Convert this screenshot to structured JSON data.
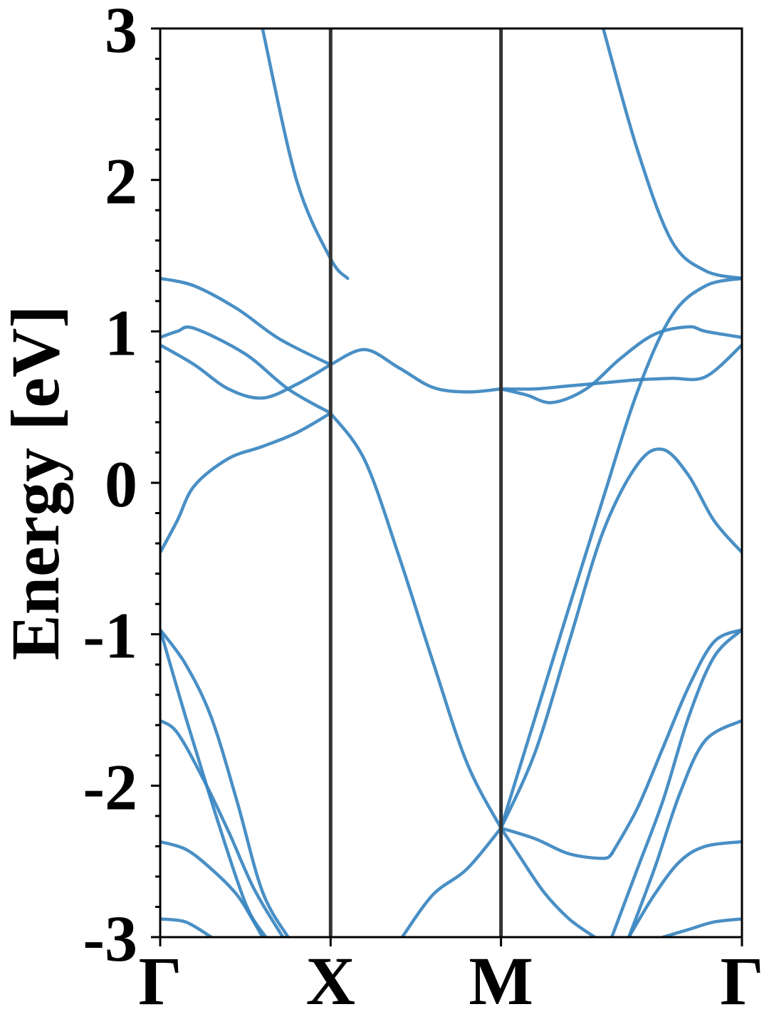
{
  "chart_data": {
    "type": "line",
    "title": "",
    "xlabel": "",
    "ylabel": "Energy [eV]",
    "ylim": [
      -3,
      3
    ],
    "yticks": [
      -3,
      -2,
      -1,
      0,
      1,
      2,
      3
    ],
    "ytick_labels": [
      "-3",
      "-2",
      "-1",
      "0",
      "1",
      "2",
      "3"
    ],
    "minor_ytick_step": 0.2,
    "high_symmetry_points": [
      {
        "label": "Γ",
        "k": 0.0
      },
      {
        "label": "X",
        "k": 1.0
      },
      {
        "label": "M",
        "k": 2.0
      },
      {
        "label": "Γ",
        "k": 3.414
      }
    ],
    "grid": false,
    "colors": {
      "band": "#3a86c0",
      "symmetry_line": "#333333",
      "axis": "#000000"
    },
    "series": [
      {
        "x": [
          0,
          0.2,
          0.45,
          0.7,
          1.0
        ],
        "y": [
          1.35,
          1.3,
          1.15,
          0.95,
          0.78
        ]
      },
      {
        "x": [
          0,
          0.1,
          0.2,
          0.5,
          0.75,
          1.0
        ],
        "y": [
          0.96,
          1.0,
          1.02,
          0.85,
          0.62,
          0.46
        ]
      },
      {
        "x": [
          0,
          0.2,
          0.4,
          0.6,
          0.8,
          1.0
        ],
        "y": [
          0.91,
          0.78,
          0.62,
          0.56,
          0.65,
          0.78
        ]
      },
      {
        "x": [
          0,
          0.1,
          0.2,
          0.4,
          0.6,
          0.8,
          1.0
        ],
        "y": [
          -0.46,
          -0.25,
          -0.02,
          0.16,
          0.24,
          0.33,
          0.46
        ]
      },
      {
        "x": [
          0,
          0.15,
          0.3,
          0.45,
          0.53,
          0.62
        ],
        "y": [
          -0.97,
          -1.55,
          -2.1,
          -2.62,
          -2.85,
          -3.0
        ]
      },
      {
        "x": [
          0,
          0.15,
          0.3,
          0.45,
          0.6,
          0.75
        ],
        "y": [
          -0.97,
          -1.2,
          -1.55,
          -2.1,
          -2.7,
          -3.0
        ]
      },
      {
        "x": [
          0,
          0.1,
          0.25,
          0.4,
          0.55,
          0.72
        ],
        "y": [
          -1.57,
          -1.65,
          -1.95,
          -2.3,
          -2.68,
          -3.0
        ]
      },
      {
        "x": [
          0,
          0.15,
          0.3,
          0.45,
          0.55,
          0.6
        ],
        "y": [
          -2.37,
          -2.42,
          -2.55,
          -2.72,
          -2.9,
          -3.0
        ]
      },
      {
        "x": [
          0,
          0.15,
          0.3
        ],
        "y": [
          -2.88,
          -2.9,
          -3.0
        ]
      },
      {
        "x": [
          1.0,
          1.2,
          1.4,
          1.6,
          1.8,
          2.0
        ],
        "y": [
          0.78,
          0.88,
          0.76,
          0.63,
          0.6,
          0.62
        ]
      },
      {
        "x": [
          1.0,
          1.2,
          1.4,
          1.6,
          1.8,
          2.0
        ],
        "y": [
          0.46,
          0.15,
          -0.48,
          -1.18,
          -1.85,
          -2.28
        ]
      },
      {
        "x": [
          1.42,
          1.6,
          1.8,
          2.0
        ],
        "y": [
          -3.0,
          -2.72,
          -2.55,
          -2.28
        ]
      },
      {
        "x": [
          2.0,
          2.2,
          2.4,
          2.6,
          2.8,
          3.0,
          3.2,
          3.414
        ],
        "y": [
          0.62,
          0.62,
          0.64,
          0.66,
          0.68,
          0.69,
          0.7,
          0.91
        ]
      },
      {
        "x": [
          2.0,
          2.15,
          2.3,
          2.5,
          2.7,
          2.9,
          3.1,
          3.2,
          3.414
        ],
        "y": [
          0.62,
          0.58,
          0.53,
          0.62,
          0.82,
          0.98,
          1.03,
          1.0,
          0.96
        ]
      },
      {
        "x": [
          2.0,
          2.2,
          2.4,
          2.6,
          2.8,
          3.0,
          3.2,
          3.414
        ],
        "y": [
          -2.28,
          -1.55,
          -0.82,
          -0.1,
          0.6,
          1.1,
          1.3,
          1.35
        ]
      },
      {
        "x": [
          2.0,
          2.2,
          2.4,
          2.6,
          2.8,
          2.95,
          3.1,
          3.25,
          3.414
        ],
        "y": [
          -2.28,
          -1.78,
          -1.05,
          -0.32,
          0.12,
          0.22,
          0.05,
          -0.25,
          -0.46
        ]
      },
      {
        "x": [
          2.0,
          2.2,
          2.4,
          2.6,
          2.65
        ],
        "y": [
          -2.28,
          -2.35,
          -2.45,
          -2.48,
          -2.45
        ]
      },
      {
        "x": [
          2.0,
          2.1,
          2.25,
          2.4,
          2.55
        ],
        "y": [
          -2.28,
          -2.45,
          -2.7,
          -2.88,
          -3.0
        ]
      },
      {
        "x": [
          2.65,
          2.8,
          2.95,
          3.1,
          3.25,
          3.414
        ],
        "y": [
          -2.45,
          -2.15,
          -1.75,
          -1.35,
          -1.05,
          -0.97
        ]
      },
      {
        "x": [
          2.65,
          2.8,
          2.95,
          3.1,
          3.25,
          3.414
        ],
        "y": [
          -3.0,
          -2.55,
          -2.1,
          -1.55,
          -1.15,
          -0.97
        ]
      },
      {
        "x": [
          2.75,
          2.9,
          3.05,
          3.2,
          3.414
        ],
        "y": [
          -3.0,
          -2.55,
          -2.05,
          -1.7,
          -1.57
        ]
      },
      {
        "x": [
          2.75,
          2.9,
          3.05,
          3.2,
          3.414
        ],
        "y": [
          -3.0,
          -2.72,
          -2.5,
          -2.4,
          -2.37
        ]
      },
      {
        "x": [
          2.95,
          3.1,
          3.25,
          3.414
        ],
        "y": [
          -3.0,
          -2.95,
          -2.9,
          -2.88
        ]
      },
      {
        "x": [
          0.6,
          0.8,
          1.0,
          1.1
        ],
        "y": [
          3.0,
          2.0,
          1.48,
          1.35
        ]
      },
      {
        "x": [
          2.6,
          2.8,
          3.0,
          3.2,
          3.414
        ],
        "y": [
          3.0,
          2.2,
          1.6,
          1.4,
          1.35
        ]
      }
    ]
  }
}
